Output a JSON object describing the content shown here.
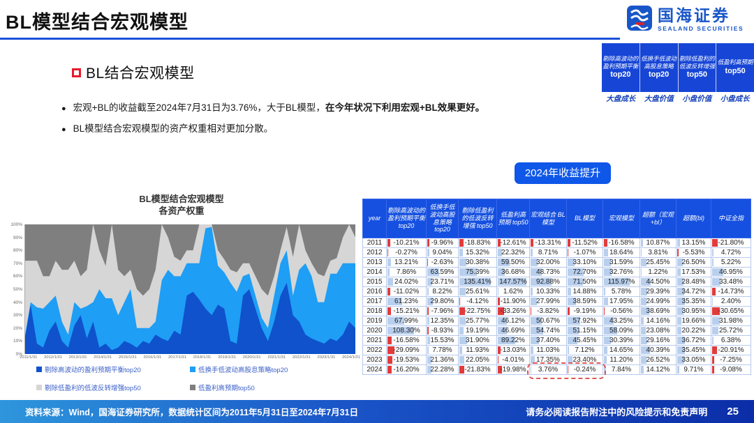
{
  "header": {
    "title": "BL模型结合宏观模型"
  },
  "logo": {
    "name": "国海证券",
    "subtitle": "SEALAND SECURITIES",
    "color": "#1856C8"
  },
  "strategy_table": {
    "columns": [
      {
        "name": "剔除高波动的盈利预期平衡",
        "tier": "top20",
        "style": "大盘成长"
      },
      {
        "name": "低换手低波动高股息策略",
        "tier": "top20",
        "style": "大盘价值"
      },
      {
        "name": "剔除低盈利的低波反转增强",
        "tier": "top50",
        "style": "小盘价值"
      },
      {
        "name": "低盈利高预期",
        "tier": "top50",
        "style": "小盘成长"
      }
    ]
  },
  "section": {
    "title": "BL结合宏观模型",
    "bullet1_normal": "宏观+BL的收益截至2024年7月31日为3.76%，大于BL模型，",
    "bullet1_bold": "在今年状况下利用宏观+BL效果更好。",
    "bullet2": "BL模型结合宏观模型的资产权重相对更加分散。"
  },
  "badge": {
    "label": "2024年收益提升"
  },
  "chart_data": {
    "type": "area",
    "stacked_percent": true,
    "title_line1": "BL模型结合宏观模型",
    "title_line2": "各资产权重",
    "ylim": [
      0,
      100
    ],
    "grid": false,
    "legend_position": "bottom",
    "y_ticks": [
      "100%",
      "90%",
      "80%",
      "70%",
      "60%",
      "50%",
      "40%",
      "30%",
      "20%",
      "10%",
      "0%"
    ],
    "x_ticks": [
      "2011/1/31",
      "2012/1/31",
      "2013/1/31",
      "2014/1/31",
      "2015/1/31",
      "2016/1/31",
      "2017/1/31",
      "2018/1/31",
      "2019/1/31",
      "2020/1/31",
      "2021/1/31",
      "2022/1/31",
      "2023/1/31",
      "2024/1/31"
    ],
    "series": [
      {
        "name": "剔除高波动的盈利预期平衡top20",
        "color": "#0F52CC",
        "values": [
          10,
          38,
          8,
          5,
          18,
          25,
          10,
          5,
          22,
          30,
          12,
          25,
          5,
          8,
          3,
          5,
          10,
          8,
          5,
          10,
          8,
          15,
          12,
          10,
          18,
          15,
          45,
          48,
          42,
          35,
          30,
          38,
          35,
          10,
          8,
          45,
          50,
          35,
          20,
          10,
          25,
          45,
          55,
          30,
          25,
          15,
          12,
          10,
          8,
          12,
          10,
          15,
          25,
          20
        ]
      },
      {
        "name": "低换手低波动高股息策略top20",
        "color": "#1E9EF5",
        "values": [
          2,
          2,
          28,
          30,
          22,
          20,
          15,
          10,
          18,
          5,
          25,
          15,
          45,
          35,
          40,
          25,
          30,
          42,
          15,
          10,
          12,
          10,
          45,
          55,
          42,
          45,
          25,
          22,
          28,
          62,
          68,
          30,
          28,
          45,
          40,
          15,
          12,
          10,
          8,
          10,
          20,
          25,
          25,
          15,
          40,
          55,
          48,
          30,
          32,
          50,
          52,
          55,
          45,
          50
        ]
      },
      {
        "name": "剔除低盈利的低波反转增强top50",
        "color": "#D6D6D6",
        "values": [
          60,
          32,
          36,
          25,
          20,
          27,
          40,
          50,
          32,
          25,
          28,
          60,
          30,
          25,
          57,
          35,
          20,
          15,
          30,
          25,
          30,
          40,
          43,
          25,
          15,
          12,
          10,
          10,
          30,
          3,
          2,
          12,
          10,
          10,
          15,
          10,
          8,
          15,
          22,
          25,
          15,
          10,
          18,
          30,
          35,
          10,
          10,
          22,
          20,
          10,
          12,
          20,
          30,
          20
        ]
      },
      {
        "name": "低盈利高预期top50",
        "color": "#7F7F7F",
        "values": [
          28,
          28,
          28,
          40,
          40,
          28,
          35,
          35,
          28,
          40,
          35,
          0,
          20,
          32,
          0,
          35,
          40,
          35,
          50,
          55,
          50,
          35,
          0,
          10,
          25,
          28,
          20,
          20,
          0,
          0,
          0,
          20,
          27,
          35,
          37,
          30,
          30,
          40,
          50,
          55,
          40,
          20,
          2,
          25,
          0,
          20,
          30,
          38,
          40,
          28,
          26,
          10,
          0,
          10
        ]
      }
    ]
  },
  "returns_table": {
    "columns": [
      "year",
      "剔除高波动的盈利预期平衡 top20",
      "低换手低波动高股息策略 top20",
      "剔除低盈利的低波反转增强 top50",
      "低盈利高预期 top50",
      "宏观结合 BL模型",
      "BL模型",
      "宏观模型",
      "超额（宏观+bl）",
      "超额(bl)",
      "中证全指"
    ],
    "bar_color": "#9DC3E6",
    "negative_bar_color": "#E23B3B",
    "bar_scale_max": 150,
    "rows": [
      {
        "year": "2011",
        "values": [
          "-10.21%",
          "-9.96%",
          "-18.83%",
          "-12.61%",
          "-13.31%",
          "-11.52%",
          "-16.58%",
          "10.87%",
          "13.15%",
          "-21.80%"
        ]
      },
      {
        "year": "2012",
        "values": [
          "-0.27%",
          "9.04%",
          "15.32%",
          "22.32%",
          "8.71%",
          "-1.07%",
          "18.64%",
          "3.81%",
          "-5.53%",
          "4.72%"
        ]
      },
      {
        "year": "2013",
        "values": [
          "13.21%",
          "-2.63%",
          "30.38%",
          "59.50%",
          "32.00%",
          "33.10%",
          "31.59%",
          "25.45%",
          "26.50%",
          "5.22%"
        ]
      },
      {
        "year": "2014",
        "values": [
          "7.86%",
          "63.59%",
          "75.39%",
          "36.68%",
          "48.73%",
          "72.70%",
          "32.76%",
          "1.22%",
          "17.53%",
          "46.95%"
        ]
      },
      {
        "year": "2015",
        "values": [
          "24.02%",
          "23.71%",
          "135.41%",
          "147.57%",
          "92.88%",
          "71.50%",
          "115.97%",
          "44.50%",
          "28.48%",
          "33.48%"
        ]
      },
      {
        "year": "2016",
        "values": [
          "-11.02%",
          "8.22%",
          "25.61%",
          "1.62%",
          "10.33%",
          "14.88%",
          "5.78%",
          "29.39%",
          "34.72%",
          "-14.73%"
        ]
      },
      {
        "year": "2017",
        "values": [
          "61.23%",
          "29.80%",
          "-4.12%",
          "-11.90%",
          "27.99%",
          "38.59%",
          "17.95%",
          "24.99%",
          "35.35%",
          "2.40%"
        ]
      },
      {
        "year": "2018",
        "values": [
          "-15.21%",
          "-7.96%",
          "-22.75%",
          "-33.26%",
          "-3.82%",
          "-9.19%",
          "-0.56%",
          "38.69%",
          "30.95%",
          "-30.65%"
        ]
      },
      {
        "year": "2019",
        "values": [
          "67.99%",
          "12.35%",
          "25.77%",
          "46.12%",
          "50.67%",
          "57.92%",
          "43.25%",
          "14.16%",
          "19.66%",
          "31.98%"
        ]
      },
      {
        "year": "2020",
        "values": [
          "108.30%",
          "-8.93%",
          "19.19%",
          "46.69%",
          "54.74%",
          "51.15%",
          "58.09%",
          "23.08%",
          "20.22%",
          "25.72%"
        ]
      },
      {
        "year": "2021",
        "values": [
          "-16.58%",
          "15.53%",
          "31.90%",
          "89.22%",
          "37.40%",
          "45.45%",
          "30.39%",
          "29.16%",
          "36.72%",
          "6.38%"
        ]
      },
      {
        "year": "2022",
        "values": [
          "-29.09%",
          "7.78%",
          "11.93%",
          "-13.03%",
          "11.03%",
          "7.12%",
          "14.65%",
          "40.39%",
          "35.45%",
          "-20.91%"
        ]
      },
      {
        "year": "2023",
        "values": [
          "-19.53%",
          "21.36%",
          "22.05%",
          "-4.01%",
          "17.35%",
          "23.40%",
          "11.20%",
          "26.52%",
          "33.05%",
          "-7.25%"
        ]
      },
      {
        "year": "2024",
        "values": [
          "-16.20%",
          "22.28%",
          "-21.83%",
          "-19.98%",
          "3.76%",
          "-0.24%",
          "7.84%",
          "14.12%",
          "9.71%",
          "-9.08%"
        ]
      }
    ],
    "highlight": {
      "row": "2024",
      "columns": [
        "宏观结合 BL模型",
        "BL模型"
      ],
      "color": "#E05555"
    }
  },
  "footer": {
    "source": "资料来源：Wind，国海证券研究所，数据统计区间为2011年5月31日至2024年7月31日",
    "disclaimer": "请务必阅读报告附注中的风险提示和免责声明",
    "page": "25"
  }
}
